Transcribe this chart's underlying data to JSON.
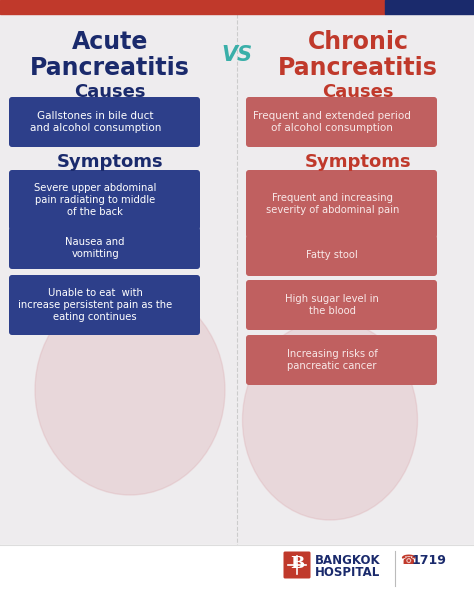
{
  "bg_color": "#eeecee",
  "header_bar_red": "#c0392b",
  "header_bar_blue": "#1a2a6c",
  "title_left_line1": "Acute",
  "title_left_line2": "Pancreatitis",
  "title_right_line1": "Chronic",
  "title_right_line2": "Pancreatitis",
  "vs_text": "VS",
  "title_left_color": "#1a2a6c",
  "title_right_color": "#c0392b",
  "vs_color": "#3aafa9",
  "causes_color_left": "#1a2a6c",
  "causes_color_right": "#c0392b",
  "section_label": "Causes",
  "section_symptoms": "Symptoms",
  "left_causes_text": "Gallstones in bile duct\nand alcohol consumption",
  "left_box_color": "#2d3f8a",
  "right_causes_text": "Frequent and extended period\nof alcohol consumption",
  "right_box_color": "#c06060",
  "left_symptoms": [
    "Severe upper abdominal\npain radiating to middle\nof the back",
    "Nausea and\nvomitting",
    "Unable to eat  with\nincrease persistent pain as the\neating continues"
  ],
  "right_symptoms": [
    "Frequent and increasing\nseverity of abdominal pain",
    "Fatty stool",
    "High sugar level in\nthe blood",
    "Increasing risks of\npancreatic cancer"
  ],
  "divider_color": "#cccccc",
  "footer_bg": "#ffffff",
  "bangkok_blue": "#1a2a6c",
  "bangkok_red": "#c0392b",
  "blob_color": "#dba8ad",
  "blob_alpha": 0.3
}
